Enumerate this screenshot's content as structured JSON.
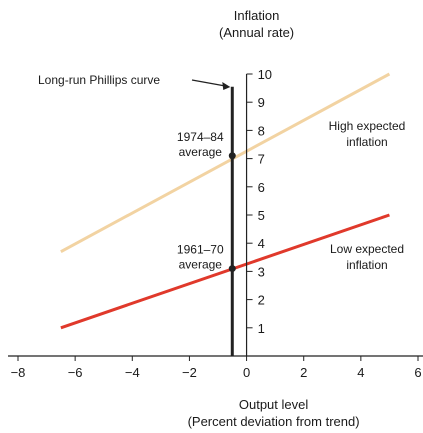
{
  "chart_data": {
    "type": "line",
    "title": "",
    "y_axis": {
      "title_lines": [
        "Inflation",
        "(Annual rate)"
      ],
      "range": [
        0,
        10
      ],
      "ticks": [
        1,
        2,
        3,
        4,
        5,
        6,
        7,
        8,
        9,
        10
      ],
      "tick_labels": [
        "1",
        "2",
        "3",
        "4",
        "5",
        "6",
        "7",
        "8",
        "9",
        "10"
      ]
    },
    "x_axis": {
      "title_lines": [
        "Output level",
        "(Percent deviation from trend)"
      ],
      "range": [
        -8,
        6
      ],
      "ticks": [
        -8,
        -6,
        -4,
        -2,
        0,
        2,
        4,
        6
      ],
      "tick_labels": [
        "−8",
        "−6",
        "−4",
        "−2",
        "0",
        "2",
        "4",
        "6"
      ]
    },
    "series": [
      {
        "name": "High expected inflation",
        "label_lines": [
          "High expected",
          "inflation"
        ],
        "color": "#f2d3a2",
        "points": [
          [
            -6.5,
            3.7
          ],
          [
            5.0,
            10.0
          ]
        ]
      },
      {
        "name": "Low expected inflation",
        "label_lines": [
          "Low expected",
          "inflation"
        ],
        "color": "#e0392b",
        "points": [
          [
            -6.5,
            1.0
          ],
          [
            5.0,
            5.0
          ]
        ]
      },
      {
        "name": "Long-run Phillips curve",
        "label": "Long-run Phillips curve",
        "color": "#222222",
        "points": [
          [
            -0.5,
            0.0
          ],
          [
            -0.5,
            9.55
          ]
        ]
      }
    ],
    "markers": [
      {
        "label_lines": [
          "1974–84",
          "average"
        ],
        "x": -0.5,
        "y": 7.1
      },
      {
        "label_lines": [
          "1961–70",
          "average"
        ],
        "x": -0.5,
        "y": 3.1
      }
    ]
  }
}
